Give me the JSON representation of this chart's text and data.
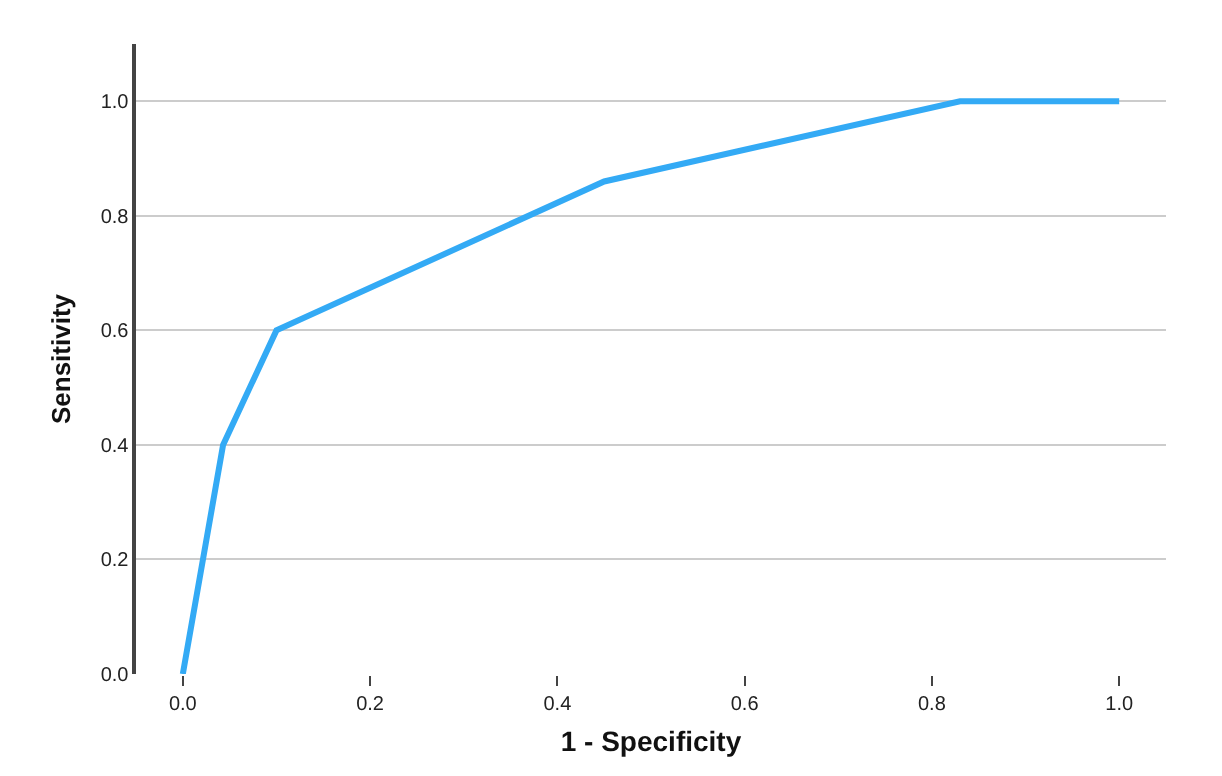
{
  "chart_data": {
    "type": "line",
    "xlabel": "1 - Specificity",
    "ylabel": "Sensitivity",
    "x": [
      0.0,
      0.043,
      0.1,
      0.45,
      0.83,
      1.0
    ],
    "series": [
      {
        "color": "#33aaf5",
        "values": [
          0.0,
          0.4,
          0.6,
          0.86,
          1.0,
          1.0
        ]
      }
    ],
    "xlim": [
      -0.05,
      1.05
    ],
    "xticks": [
      {
        "value": 0,
        "label": "0.0"
      },
      0.2,
      0.4,
      0.6,
      0.8,
      {
        "value": 1,
        "label": "1.0"
      }
    ],
    "ylim": [
      0,
      1.1
    ],
    "yticks": [
      {
        "value": 0,
        "label": "0.0"
      },
      0.2,
      0.4,
      0.6,
      0.8,
      {
        "value": 1,
        "label": "1.0"
      }
    ],
    "grid": "y",
    "marker": "none",
    "line_style": "solid"
  }
}
